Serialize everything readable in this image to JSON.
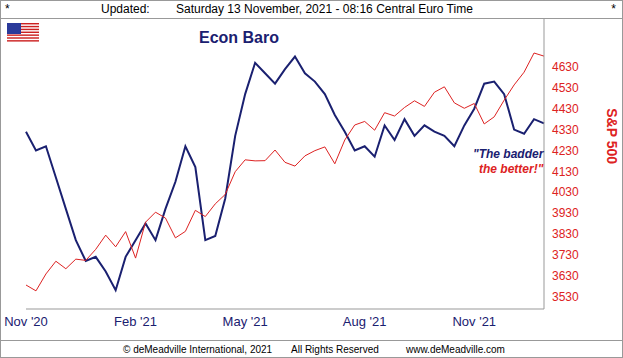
{
  "header": {
    "marks": [
      "*",
      "*"
    ],
    "updated_label": "Updated:",
    "updated": "Saturday 13 November, 2021 - 08:16 Central Euro Time"
  },
  "footer": {
    "copyright": "© deMeadville International, 2021",
    "rights": "All Rights Reserved",
    "site": "www.deMeadville.com"
  },
  "chart_data": {
    "type": "line",
    "title": "Econ Baro",
    "y_label": "S&P 500",
    "annotation": [
      "\"The badder",
      "the better!\""
    ],
    "grid": false,
    "categories": [
      "Nov '20",
      null,
      null,
      null,
      null,
      null,
      null,
      null,
      null,
      null,
      null,
      "Feb '21",
      null,
      null,
      null,
      null,
      null,
      null,
      null,
      null,
      null,
      null,
      "May '21",
      null,
      null,
      null,
      null,
      null,
      null,
      null,
      null,
      null,
      null,
      null,
      "Aug '21",
      null,
      null,
      null,
      null,
      null,
      null,
      null,
      null,
      null,
      null,
      "Nov '21",
      null,
      null,
      null,
      null,
      null,
      null,
      null
    ],
    "ylim": [
      3470,
      4860
    ],
    "yticks": [
      3530,
      3630,
      3730,
      3830,
      3930,
      4030,
      4130,
      4230,
      4330,
      4430,
      4530,
      4630
    ],
    "series": [
      {
        "name": "Econ Baro",
        "color": "#1a2070",
        "values": [
          4320,
          4230,
          4250,
          4100,
          3950,
          3800,
          3700,
          3720,
          3650,
          3560,
          3720,
          3800,
          3880,
          3800,
          3950,
          4080,
          4250,
          4150,
          3800,
          3820,
          4000,
          4300,
          4500,
          4650,
          4600,
          4550,
          4620,
          4680,
          4600,
          4560,
          4500,
          4400,
          4320,
          4230,
          4250,
          4200,
          4350,
          4280,
          4380,
          4300,
          4350,
          4320,
          4300,
          4250,
          4350,
          4430,
          4550,
          4560,
          4500,
          4330,
          4310,
          4380,
          4360
        ]
      },
      {
        "name": "S&P 500",
        "color": "#dd2222",
        "values": [
          3585,
          3557,
          3638,
          3699,
          3663,
          3709,
          3703,
          3756,
          3824,
          3768,
          3841,
          3714,
          3886,
          3934,
          3906,
          3811,
          3842,
          3943,
          3913,
          3974,
          4019,
          4128,
          4185,
          4180,
          4181,
          4232,
          4173,
          4155,
          4204,
          4229,
          4247,
          4166,
          4280,
          4352,
          4369,
          4327,
          4411,
          4395,
          4436,
          4468,
          4441,
          4509,
          4535,
          4458,
          4432,
          4455,
          4357,
          4391,
          4471,
          4544,
          4605,
          4697,
          4682
        ]
      }
    ]
  }
}
